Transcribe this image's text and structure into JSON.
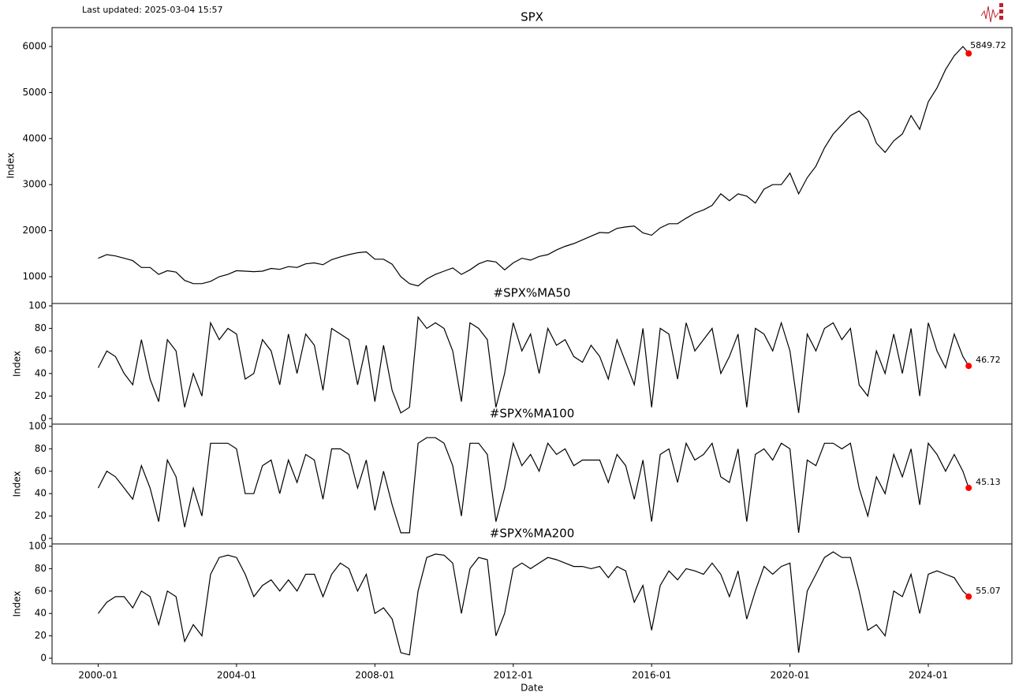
{
  "chart_data": [
    {
      "type": "line",
      "title": "SPX",
      "annotation": "Last updated: 2025-03-04 15:57",
      "ylabel": "Index",
      "x": [
        "2000-01",
        "2000-04",
        "2000-07",
        "2000-10",
        "2001-01",
        "2001-04",
        "2001-07",
        "2001-10",
        "2002-01",
        "2002-04",
        "2002-07",
        "2002-10",
        "2003-01",
        "2003-04",
        "2003-07",
        "2003-10",
        "2004-01",
        "2004-04",
        "2004-07",
        "2004-10",
        "2005-01",
        "2005-04",
        "2005-07",
        "2005-10",
        "2006-01",
        "2006-04",
        "2006-07",
        "2006-10",
        "2007-01",
        "2007-04",
        "2007-07",
        "2007-10",
        "2008-01",
        "2008-04",
        "2008-07",
        "2008-10",
        "2009-01",
        "2009-04",
        "2009-07",
        "2009-10",
        "2010-01",
        "2010-04",
        "2010-07",
        "2010-10",
        "2011-01",
        "2011-04",
        "2011-07",
        "2011-10",
        "2012-01",
        "2012-04",
        "2012-07",
        "2012-10",
        "2013-01",
        "2013-04",
        "2013-07",
        "2013-10",
        "2014-01",
        "2014-04",
        "2014-07",
        "2014-10",
        "2015-01",
        "2015-04",
        "2015-07",
        "2015-10",
        "2016-01",
        "2016-04",
        "2016-07",
        "2016-10",
        "2017-01",
        "2017-04",
        "2017-07",
        "2017-10",
        "2018-01",
        "2018-04",
        "2018-07",
        "2018-10",
        "2019-01",
        "2019-04",
        "2019-07",
        "2019-10",
        "2020-01",
        "2020-04",
        "2020-07",
        "2020-10",
        "2021-01",
        "2021-04",
        "2021-07",
        "2021-10",
        "2022-01",
        "2022-04",
        "2022-07",
        "2022-10",
        "2023-01",
        "2023-04",
        "2023-07",
        "2023-10",
        "2024-01",
        "2024-04",
        "2024-07",
        "2024-10",
        "2025-01",
        "2025-03"
      ],
      "values": [
        1400,
        1480,
        1450,
        1400,
        1350,
        1200,
        1200,
        1050,
        1130,
        1100,
        920,
        850,
        850,
        900,
        1000,
        1050,
        1130,
        1120,
        1110,
        1120,
        1180,
        1160,
        1220,
        1200,
        1280,
        1300,
        1260,
        1370,
        1430,
        1480,
        1520,
        1540,
        1380,
        1380,
        1270,
        1000,
        850,
        800,
        950,
        1050,
        1120,
        1190,
        1050,
        1150,
        1280,
        1350,
        1320,
        1150,
        1300,
        1400,
        1360,
        1440,
        1480,
        1580,
        1660,
        1720,
        1800,
        1880,
        1960,
        1950,
        2050,
        2080,
        2100,
        1950,
        1900,
        2060,
        2150,
        2150,
        2270,
        2380,
        2450,
        2550,
        2800,
        2650,
        2800,
        2750,
        2600,
        2900,
        3000,
        3000,
        3250,
        2800,
        3150,
        3400,
        3800,
        4100,
        4300,
        4500,
        4600,
        4400,
        3900,
        3700,
        3950,
        4100,
        4500,
        4200,
        4800,
        5100,
        5500,
        5800,
        6000,
        5849.72
      ],
      "color": "#000000",
      "marker_color": "#ff0000",
      "xlim": [
        "1998-09",
        "2026-06"
      ],
      "ylim": [
        418,
        6411
      ],
      "yticks": [
        1000,
        2000,
        3000,
        4000,
        5000,
        6000
      ]
    },
    {
      "type": "line",
      "title": "#SPX%MA50",
      "ylabel": "Index",
      "x": [
        "2000-01",
        "2000-04",
        "2000-07",
        "2000-10",
        "2001-01",
        "2001-04",
        "2001-07",
        "2001-10",
        "2002-01",
        "2002-04",
        "2002-07",
        "2002-10",
        "2003-01",
        "2003-04",
        "2003-07",
        "2003-10",
        "2004-01",
        "2004-04",
        "2004-07",
        "2004-10",
        "2005-01",
        "2005-04",
        "2005-07",
        "2005-10",
        "2006-01",
        "2006-04",
        "2006-07",
        "2006-10",
        "2007-01",
        "2007-04",
        "2007-07",
        "2007-10",
        "2008-01",
        "2008-04",
        "2008-07",
        "2008-10",
        "2009-01",
        "2009-04",
        "2009-07",
        "2009-10",
        "2010-01",
        "2010-04",
        "2010-07",
        "2010-10",
        "2011-01",
        "2011-04",
        "2011-07",
        "2011-10",
        "2012-01",
        "2012-04",
        "2012-07",
        "2012-10",
        "2013-01",
        "2013-04",
        "2013-07",
        "2013-10",
        "2014-01",
        "2014-04",
        "2014-07",
        "2014-10",
        "2015-01",
        "2015-04",
        "2015-07",
        "2015-10",
        "2016-01",
        "2016-04",
        "2016-07",
        "2016-10",
        "2017-01",
        "2017-04",
        "2017-07",
        "2017-10",
        "2018-01",
        "2018-04",
        "2018-07",
        "2018-10",
        "2019-01",
        "2019-04",
        "2019-07",
        "2019-10",
        "2020-01",
        "2020-04",
        "2020-07",
        "2020-10",
        "2021-01",
        "2021-04",
        "2021-07",
        "2021-10",
        "2022-01",
        "2022-04",
        "2022-07",
        "2022-10",
        "2023-01",
        "2023-04",
        "2023-07",
        "2023-10",
        "2024-01",
        "2024-04",
        "2024-07",
        "2024-10",
        "2025-01",
        "2025-03"
      ],
      "values": [
        45,
        60,
        55,
        40,
        30,
        70,
        35,
        15,
        70,
        60,
        10,
        40,
        20,
        85,
        70,
        80,
        75,
        35,
        40,
        70,
        60,
        30,
        75,
        40,
        75,
        65,
        25,
        80,
        75,
        70,
        30,
        65,
        15,
        65,
        25,
        5,
        10,
        90,
        80,
        85,
        80,
        60,
        15,
        85,
        80,
        70,
        10,
        40,
        85,
        60,
        75,
        40,
        80,
        65,
        70,
        55,
        50,
        65,
        55,
        35,
        70,
        50,
        30,
        80,
        10,
        80,
        75,
        35,
        85,
        60,
        70,
        80,
        40,
        55,
        75,
        10,
        80,
        75,
        60,
        85,
        60,
        5,
        75,
        60,
        80,
        85,
        70,
        80,
        30,
        20,
        60,
        40,
        75,
        40,
        80,
        20,
        85,
        60,
        45,
        75,
        55,
        46.72
      ],
      "color": "#000000",
      "marker_color": "#ff0000",
      "xlim": [
        "1998-09",
        "2026-06"
      ],
      "ylim": [
        -4.9,
        102.1
      ],
      "yticks": [
        0,
        20,
        40,
        60,
        80,
        100
      ]
    },
    {
      "type": "line",
      "title": "#SPX%MA100",
      "ylabel": "Index",
      "x": [
        "2000-01",
        "2000-04",
        "2000-07",
        "2000-10",
        "2001-01",
        "2001-04",
        "2001-07",
        "2001-10",
        "2002-01",
        "2002-04",
        "2002-07",
        "2002-10",
        "2003-01",
        "2003-04",
        "2003-07",
        "2003-10",
        "2004-01",
        "2004-04",
        "2004-07",
        "2004-10",
        "2005-01",
        "2005-04",
        "2005-07",
        "2005-10",
        "2006-01",
        "2006-04",
        "2006-07",
        "2006-10",
        "2007-01",
        "2007-04",
        "2007-07",
        "2007-10",
        "2008-01",
        "2008-04",
        "2008-07",
        "2008-10",
        "2009-01",
        "2009-04",
        "2009-07",
        "2009-10",
        "2010-01",
        "2010-04",
        "2010-07",
        "2010-10",
        "2011-01",
        "2011-04",
        "2011-07",
        "2011-10",
        "2012-01",
        "2012-04",
        "2012-07",
        "2012-10",
        "2013-01",
        "2013-04",
        "2013-07",
        "2013-10",
        "2014-01",
        "2014-04",
        "2014-07",
        "2014-10",
        "2015-01",
        "2015-04",
        "2015-07",
        "2015-10",
        "2016-01",
        "2016-04",
        "2016-07",
        "2016-10",
        "2017-01",
        "2017-04",
        "2017-07",
        "2017-10",
        "2018-01",
        "2018-04",
        "2018-07",
        "2018-10",
        "2019-01",
        "2019-04",
        "2019-07",
        "2019-10",
        "2020-01",
        "2020-04",
        "2020-07",
        "2020-10",
        "2021-01",
        "2021-04",
        "2021-07",
        "2021-10",
        "2022-01",
        "2022-04",
        "2022-07",
        "2022-10",
        "2023-01",
        "2023-04",
        "2023-07",
        "2023-10",
        "2024-01",
        "2024-04",
        "2024-07",
        "2024-10",
        "2025-01",
        "2025-03"
      ],
      "values": [
        45,
        60,
        55,
        45,
        35,
        65,
        45,
        15,
        70,
        55,
        10,
        45,
        20,
        85,
        85,
        85,
        80,
        40,
        40,
        65,
        70,
        40,
        70,
        50,
        75,
        70,
        35,
        80,
        80,
        75,
        45,
        70,
        25,
        60,
        30,
        5,
        5,
        85,
        90,
        90,
        85,
        65,
        20,
        85,
        85,
        75,
        15,
        45,
        85,
        65,
        75,
        60,
        85,
        75,
        80,
        65,
        70,
        70,
        70,
        50,
        75,
        65,
        35,
        70,
        15,
        75,
        80,
        50,
        85,
        70,
        75,
        85,
        55,
        50,
        80,
        15,
        75,
        80,
        70,
        85,
        80,
        5,
        70,
        65,
        85,
        85,
        80,
        85,
        45,
        20,
        55,
        40,
        75,
        55,
        80,
        30,
        85,
        75,
        60,
        75,
        60,
        45.13
      ],
      "color": "#000000",
      "marker_color": "#ff0000",
      "xlim": [
        "1998-09",
        "2026-06"
      ],
      "ylim": [
        -4.9,
        102.1
      ],
      "yticks": [
        0,
        20,
        40,
        60,
        80,
        100
      ]
    },
    {
      "type": "line",
      "title": "#SPX%MA200",
      "ylabel": "Index",
      "xlabel": "Date",
      "x": [
        "2000-01",
        "2000-04",
        "2000-07",
        "2000-10",
        "2001-01",
        "2001-04",
        "2001-07",
        "2001-10",
        "2002-01",
        "2002-04",
        "2002-07",
        "2002-10",
        "2003-01",
        "2003-04",
        "2003-07",
        "2003-10",
        "2004-01",
        "2004-04",
        "2004-07",
        "2004-10",
        "2005-01",
        "2005-04",
        "2005-07",
        "2005-10",
        "2006-01",
        "2006-04",
        "2006-07",
        "2006-10",
        "2007-01",
        "2007-04",
        "2007-07",
        "2007-10",
        "2008-01",
        "2008-04",
        "2008-07",
        "2008-10",
        "2009-01",
        "2009-04",
        "2009-07",
        "2009-10",
        "2010-01",
        "2010-04",
        "2010-07",
        "2010-10",
        "2011-01",
        "2011-04",
        "2011-07",
        "2011-10",
        "2012-01",
        "2012-04",
        "2012-07",
        "2012-10",
        "2013-01",
        "2013-04",
        "2013-07",
        "2013-10",
        "2014-01",
        "2014-04",
        "2014-07",
        "2014-10",
        "2015-01",
        "2015-04",
        "2015-07",
        "2015-10",
        "2016-01",
        "2016-04",
        "2016-07",
        "2016-10",
        "2017-01",
        "2017-04",
        "2017-07",
        "2017-10",
        "2018-01",
        "2018-04",
        "2018-07",
        "2018-10",
        "2019-01",
        "2019-04",
        "2019-07",
        "2019-10",
        "2020-01",
        "2020-04",
        "2020-07",
        "2020-10",
        "2021-01",
        "2021-04",
        "2021-07",
        "2021-10",
        "2022-01",
        "2022-04",
        "2022-07",
        "2022-10",
        "2023-01",
        "2023-04",
        "2023-07",
        "2023-10",
        "2024-01",
        "2024-04",
        "2024-07",
        "2024-10",
        "2025-01",
        "2025-03"
      ],
      "values": [
        40,
        50,
        55,
        55,
        45,
        60,
        55,
        30,
        60,
        55,
        15,
        30,
        20,
        75,
        90,
        92,
        90,
        75,
        55,
        65,
        70,
        60,
        70,
        60,
        75,
        75,
        55,
        75,
        85,
        80,
        60,
        75,
        40,
        45,
        35,
        5,
        3,
        60,
        90,
        93,
        92,
        85,
        40,
        80,
        90,
        88,
        20,
        40,
        80,
        85,
        80,
        85,
        90,
        88,
        85,
        82,
        82,
        80,
        82,
        72,
        82,
        78,
        50,
        65,
        25,
        65,
        78,
        70,
        80,
        78,
        75,
        85,
        75,
        55,
        78,
        35,
        60,
        82,
        75,
        82,
        85,
        5,
        60,
        75,
        90,
        95,
        90,
        90,
        60,
        25,
        30,
        20,
        60,
        55,
        75,
        40,
        75,
        78,
        75,
        72,
        60,
        55.07
      ],
      "color": "#000000",
      "marker_color": "#ff0000",
      "xlim": [
        "1998-09",
        "2026-06"
      ],
      "ylim": [
        -4.9,
        102.1
      ],
      "yticks": [
        0,
        20,
        40,
        60,
        80,
        100
      ],
      "xticks": [
        "2000-01",
        "2004-01",
        "2008-01",
        "2012-01",
        "2016-01",
        "2020-01",
        "2024-01"
      ]
    }
  ]
}
